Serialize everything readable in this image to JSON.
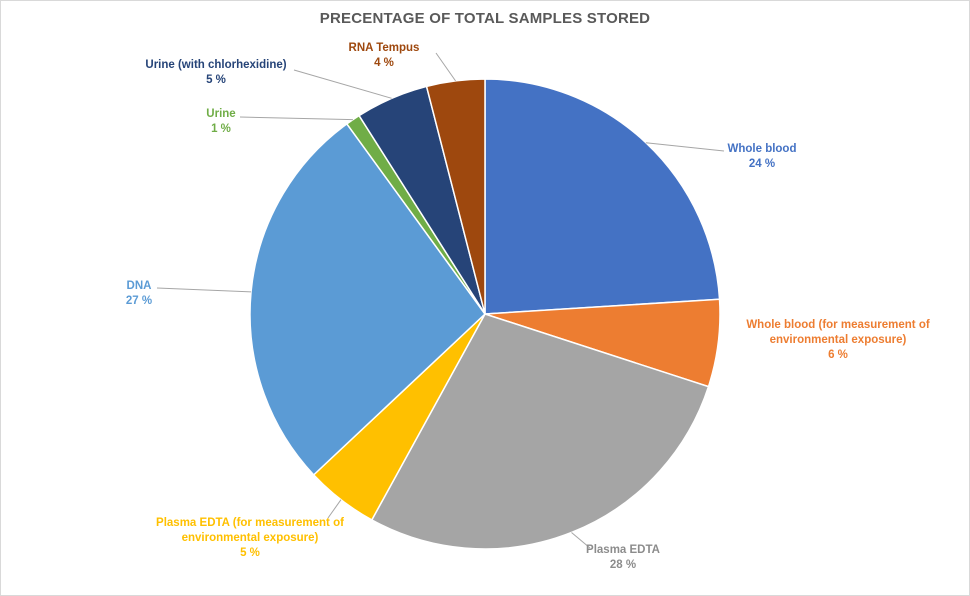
{
  "chart_data": {
    "type": "pie",
    "title": "PRECENTAGE OF TOTAL SAMPLES STORED",
    "legend": "none",
    "slices": [
      {
        "label": [
          "Whole blood"
        ],
        "value_label": "24 %",
        "value": 24,
        "color": "#4472C4"
      },
      {
        "label": [
          "Whole blood (for measurement of",
          "environmental exposure)"
        ],
        "value_label": "6 %",
        "value": 6,
        "color": "#ED7D31"
      },
      {
        "label": [
          "Plasma EDTA"
        ],
        "value_label": "28 %",
        "value": 28,
        "color": "#A5A5A5"
      },
      {
        "label": [
          "Plasma EDTA (for measurement of",
          "environmental exposure)"
        ],
        "value_label": "5 %",
        "value": 5,
        "color": "#FFC000"
      },
      {
        "label": [
          "DNA"
        ],
        "value_label": "27 %",
        "value": 27,
        "color": "#5B9BD5"
      },
      {
        "label": [
          "Urine"
        ],
        "value_label": "1 %",
        "value": 1,
        "color": "#70AD47"
      },
      {
        "label": [
          "Urine (with chlorhexidine)"
        ],
        "value_label": "5 %",
        "value": 5,
        "color": "#264478"
      },
      {
        "label": [
          "RNA Tempus"
        ],
        "value_label": "4 %",
        "value": 4,
        "color": "#9E480E"
      }
    ]
  }
}
